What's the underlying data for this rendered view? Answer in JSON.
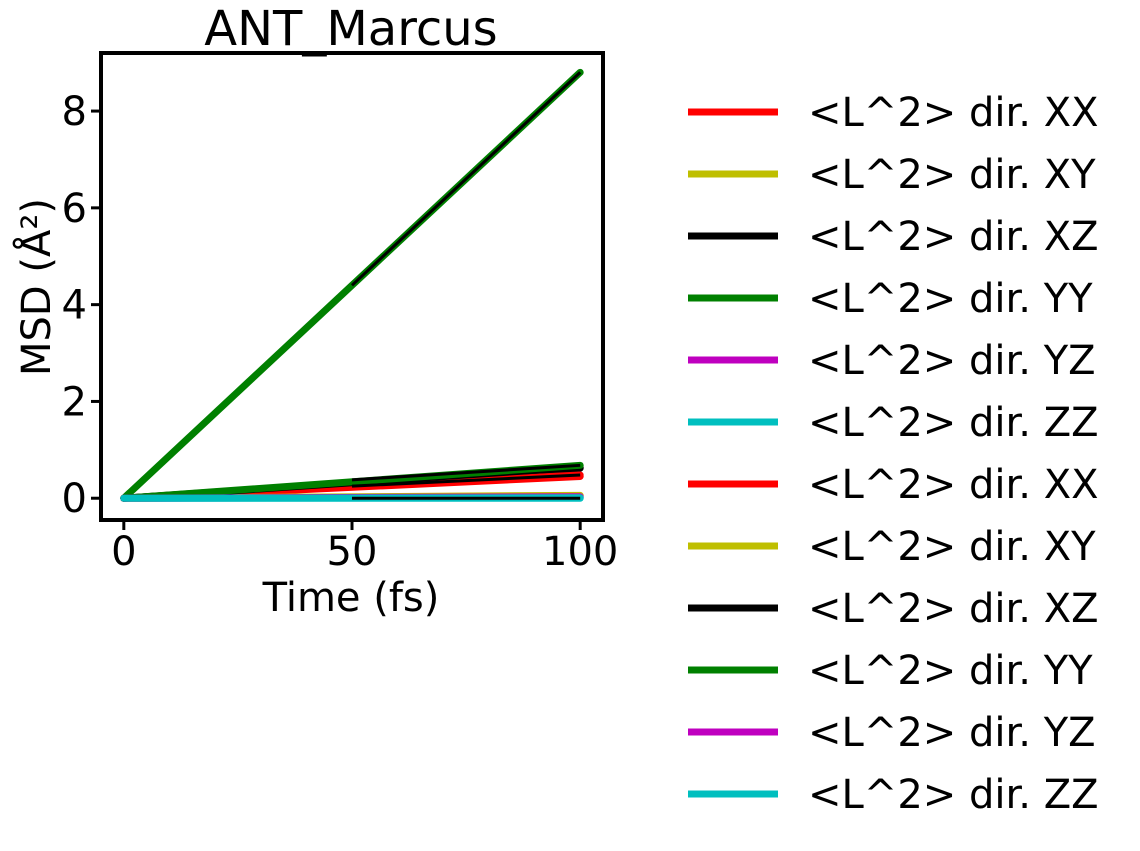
{
  "chart_data": {
    "type": "line",
    "title": "ANT_Marcus",
    "xlabel": "Time (fs)",
    "ylabel": "MSD (Å²)",
    "xlim": [
      -5,
      105
    ],
    "ylim": [
      -0.45,
      9.2
    ],
    "xticks": [
      0,
      50,
      100
    ],
    "yticks": [
      0,
      2,
      4,
      6,
      8
    ],
    "grid": false,
    "legend_position": "outside right",
    "series": [
      {
        "name": "<L^2> dir. XX",
        "color": "#ff0000",
        "x": [
          0,
          100
        ],
        "y": [
          0,
          0.45
        ]
      },
      {
        "name": "<L^2> dir. XY",
        "color": "#bfbf00",
        "x": [
          0,
          100
        ],
        "y": [
          0,
          0.05
        ]
      },
      {
        "name": "<L^2> dir. XZ",
        "color": "#000000",
        "x": [
          0,
          100
        ],
        "y": [
          0,
          0.62
        ]
      },
      {
        "name": "<L^2> dir. YY",
        "color": "#008000",
        "x": [
          0,
          100
        ],
        "y": [
          0,
          8.8
        ]
      },
      {
        "name": "<L^2> dir. YZ",
        "color": "#bf00bf",
        "x": [
          0,
          100
        ],
        "y": [
          0,
          0.02
        ]
      },
      {
        "name": "<L^2> dir. ZZ",
        "color": "#00bfbf",
        "x": [
          0,
          100
        ],
        "y": [
          0,
          0.0
        ]
      },
      {
        "name": "<L^2> dir. XX",
        "color": "#ff0000",
        "x": [
          0,
          100
        ],
        "y": [
          0,
          0.48
        ]
      },
      {
        "name": "<L^2> dir. XY",
        "color": "#bfbf00",
        "x": [
          0,
          100
        ],
        "y": [
          0,
          0.06
        ]
      },
      {
        "name": "<L^2> dir. XZ",
        "color": "#000000",
        "x": [
          0,
          100
        ],
        "y": [
          0,
          0.64
        ]
      },
      {
        "name": "<L^2> dir. YY",
        "color": "#008000",
        "x": [
          0,
          100
        ],
        "y": [
          0,
          0.68
        ]
      },
      {
        "name": "<L^2> dir. YZ",
        "color": "#bf00bf",
        "x": [
          0,
          100
        ],
        "y": [
          0,
          0.03
        ]
      },
      {
        "name": "<L^2> dir. ZZ",
        "color": "#00bfbf",
        "x": [
          0,
          100
        ],
        "y": [
          0,
          0.01
        ]
      }
    ],
    "overlay_segments": [
      {
        "color": "#000000",
        "x": [
          50,
          100
        ],
        "y": [
          0.38,
          0.68
        ]
      },
      {
        "color": "#000000",
        "x": [
          50,
          100
        ],
        "y": [
          0.25,
          0.48
        ]
      },
      {
        "color": "#000000",
        "x": [
          50,
          100
        ],
        "y": [
          0.0,
          0.0
        ]
      },
      {
        "color": "#000000",
        "x": [
          50,
          100
        ],
        "y": [
          4.4,
          8.8
        ]
      }
    ]
  }
}
